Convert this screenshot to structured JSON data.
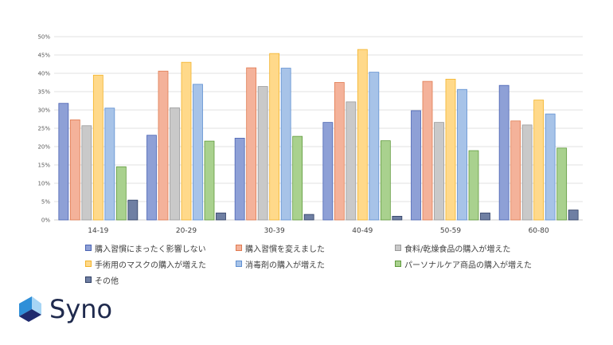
{
  "chart_data": {
    "type": "bar",
    "categories": [
      "14-19",
      "20-29",
      "30-39",
      "40-49",
      "50-59",
      "60-80"
    ],
    "yticks": [
      "0%",
      "5%",
      "10%",
      "15%",
      "20%",
      "25%",
      "30%",
      "35%",
      "40%",
      "45%",
      "50%"
    ],
    "ylim": [
      0,
      50
    ],
    "grid": true,
    "legend_position": "bottom",
    "series": [
      {
        "name": "購入習慣にまったく影響しない",
        "color": "#8ea0d6",
        "border": "#4a63b3",
        "values": [
          31.8,
          23.1,
          22.3,
          26.6,
          29.8,
          36.7
        ]
      },
      {
        "name": "購入習慣を変えました",
        "color": "#f4b29a",
        "border": "#e07a50",
        "values": [
          27.3,
          40.6,
          41.5,
          37.5,
          37.8,
          27.0
        ]
      },
      {
        "name": "食料/乾燥食品の購入が増えた",
        "color": "#c9c9c9",
        "border": "#9a9a9a",
        "values": [
          25.7,
          30.6,
          36.4,
          32.2,
          26.6,
          25.9
        ]
      },
      {
        "name": "手術用のマスクの購入が増えた",
        "color": "#ffd98a",
        "border": "#f2b32a",
        "values": [
          39.5,
          43.0,
          45.4,
          46.5,
          38.4,
          32.7
        ]
      },
      {
        "name": "消毒剤の購入が増えた",
        "color": "#a7c3e8",
        "border": "#5f8fd1",
        "values": [
          30.5,
          37.0,
          41.4,
          40.3,
          35.6,
          28.9
        ]
      },
      {
        "name": "パーソナルケア商品の購入が増えた",
        "color": "#a9d18e",
        "border": "#5f9a3c",
        "values": [
          14.5,
          21.5,
          22.8,
          21.6,
          18.9,
          19.6
        ]
      },
      {
        "name": "その他",
        "color": "#6f7fa3",
        "border": "#2f3f64",
        "values": [
          5.4,
          1.9,
          1.5,
          1.0,
          1.9,
          2.7
        ]
      }
    ]
  },
  "brand": {
    "name": "Syno",
    "colors": {
      "text": "#1f2a4d",
      "top": "#2f8fd8",
      "bottom": "#1f2a6e"
    }
  }
}
